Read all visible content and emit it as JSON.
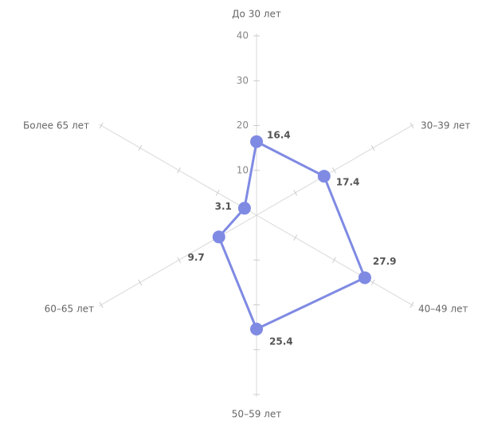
{
  "chart_data": {
    "type": "radar",
    "categories": [
      "До 30 лет",
      "30–39 лет",
      "40–49 лет",
      "50–59 лет",
      "60–65 лет",
      "Более 65 лет"
    ],
    "values": [
      16.4,
      17.4,
      27.9,
      25.4,
      9.7,
      3.1
    ],
    "color": "#7f8ae3",
    "ylim": [
      0,
      40
    ],
    "yticks": [
      10,
      20,
      30,
      40
    ]
  }
}
